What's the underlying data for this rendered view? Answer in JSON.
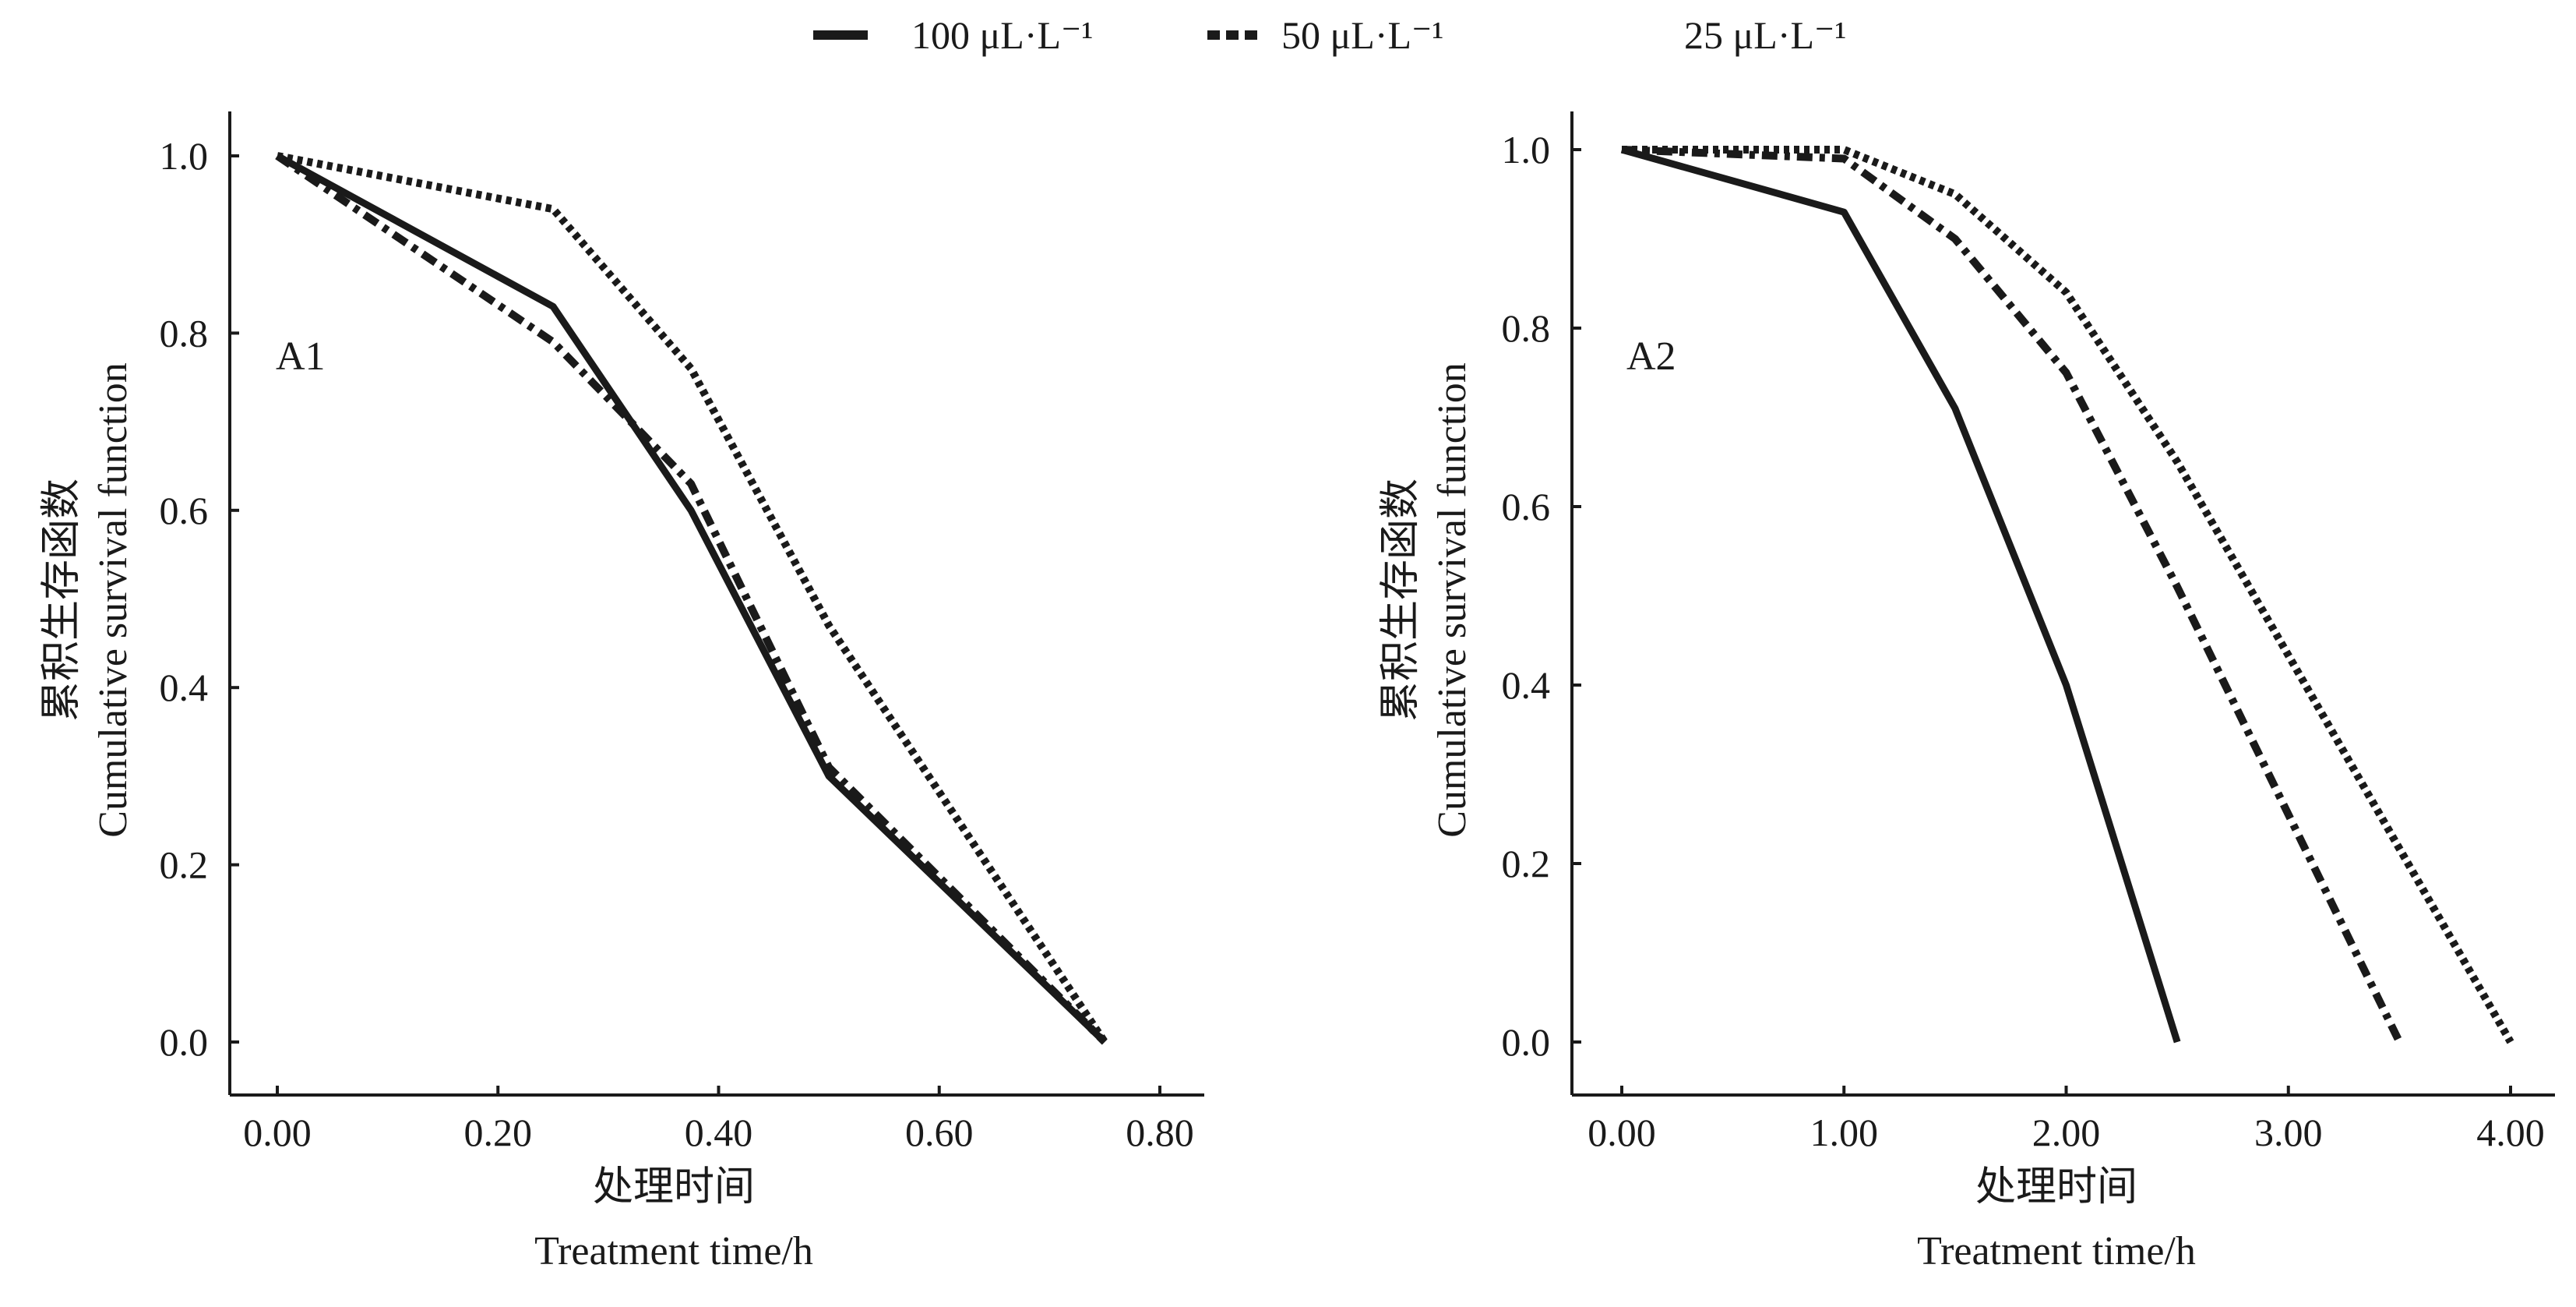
{
  "legend": [
    {
      "label": "100 μL·L⁻¹",
      "style": "solid",
      "shown_swatch": true
    },
    {
      "label": "50 μL·L⁻¹",
      "style": "dashdot",
      "shown_swatch": true
    },
    {
      "label": "25 μL·L⁻¹",
      "style": "dotted",
      "shown_swatch": false
    }
  ],
  "colors": {
    "line": "#1a1a1a",
    "axis": "#1a1a1a"
  },
  "chart_data": [
    {
      "type": "line",
      "panel_label": "A1",
      "xlabel_cn": "处理时间",
      "xlabel": "Treatment time/h",
      "ylabel_cn": "累积生存函数",
      "ylabel": "Cumulative survival function",
      "xlim": [
        0,
        0.8
      ],
      "ylim": [
        0,
        1.0
      ],
      "xticks": [
        "0.00",
        "0.20",
        "0.40",
        "0.60",
        "0.80"
      ],
      "xtick_values": [
        0,
        0.2,
        0.4,
        0.6,
        0.8
      ],
      "yticks": [
        "0.0",
        "0.2",
        "0.4",
        "0.6",
        "0.8",
        "1.0"
      ],
      "ytick_values": [
        0,
        0.2,
        0.4,
        0.6,
        0.8,
        1.0
      ],
      "grid": false,
      "series": [
        {
          "name": "100 μL·L⁻¹",
          "style": "solid",
          "x": [
            0,
            0.25,
            0.375,
            0.5,
            0.75
          ],
          "y": [
            1.0,
            0.83,
            0.6,
            0.3,
            0.0
          ]
        },
        {
          "name": "50 μL·L⁻¹",
          "style": "dashdot",
          "x": [
            0,
            0.25,
            0.375,
            0.5,
            0.75
          ],
          "y": [
            1.0,
            0.79,
            0.63,
            0.31,
            0.0
          ]
        },
        {
          "name": "25 μL·L⁻¹",
          "style": "dotted",
          "x": [
            0,
            0.25,
            0.375,
            0.5,
            0.75
          ],
          "y": [
            1.0,
            0.94,
            0.76,
            0.47,
            0.0
          ]
        }
      ]
    },
    {
      "type": "line",
      "panel_label": "A2",
      "xlabel_cn": "处理时间",
      "xlabel": "Treatment time/h",
      "ylabel_cn": "累积生存函数",
      "ylabel": "Cumulative survival function",
      "xlim": [
        0,
        4.0
      ],
      "ylim": [
        0,
        1.0
      ],
      "xticks": [
        "0.00",
        "1.00",
        "2.00",
        "3.00",
        "4.00"
      ],
      "xtick_values": [
        0,
        1,
        2,
        3,
        4
      ],
      "yticks": [
        "0.0",
        "0.2",
        "0.4",
        "0.6",
        "0.8",
        "1.0"
      ],
      "ytick_values": [
        0,
        0.2,
        0.4,
        0.6,
        0.8,
        1.0
      ],
      "grid": false,
      "series": [
        {
          "name": "100 μL·L⁻¹",
          "style": "solid",
          "x": [
            0,
            1,
            1.5,
            2,
            2.5
          ],
          "y": [
            1.0,
            0.93,
            0.71,
            0.4,
            0.0
          ]
        },
        {
          "name": "50 μL·L⁻¹",
          "style": "dashdot",
          "x": [
            0,
            1,
            1.5,
            2,
            2.5,
            3.5
          ],
          "y": [
            1.0,
            0.99,
            0.9,
            0.75,
            0.51,
            0.0
          ]
        },
        {
          "name": "25 μL·L⁻¹",
          "style": "dotted",
          "x": [
            0,
            1,
            1.5,
            2,
            2.5,
            4
          ],
          "y": [
            1.0,
            1.0,
            0.95,
            0.84,
            0.65,
            0.0
          ]
        }
      ]
    }
  ]
}
